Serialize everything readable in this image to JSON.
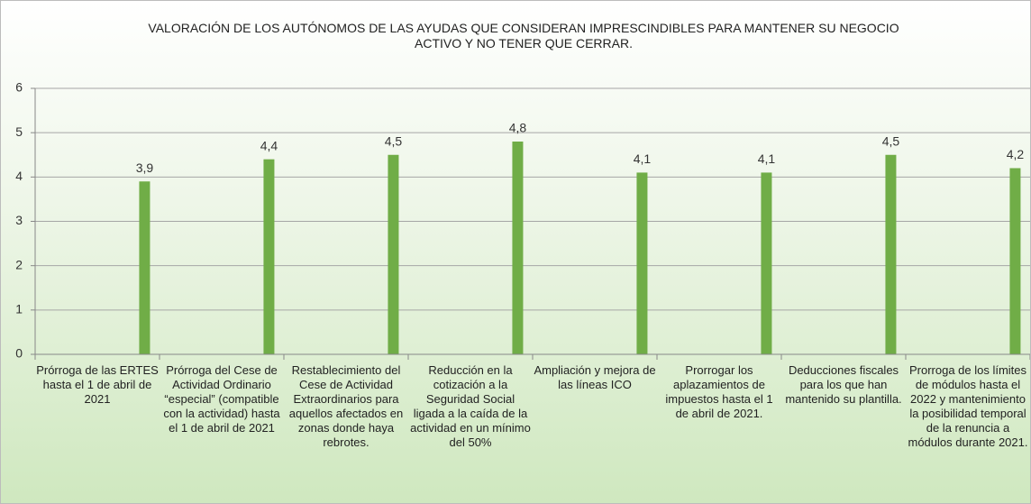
{
  "chart_data": {
    "type": "bar",
    "title": "VALORACIÓN DE LOS AUTÓNOMOS DE LAS AYUDAS QUE CONSIDERAN IMPRESCINDIBLES PARA MANTENER SU NEGOCIO ACTIVO Y NO TENER QUE CERRAR.",
    "categories": [
      "Prórroga de las ERTES hasta el 1 de abril de 2021",
      "Prórroga del Cese de Actividad Ordinario “especial” (compatible con la actividad) hasta el 1 de abril de 2021",
      "Restablecimiento del Cese de Actividad Extraordinarios para aquellos afectados en zonas donde haya rebrotes.",
      "Reducción en la cotización a la Seguridad Social ligada a la caída de la actividad en un mínimo del 50%",
      "Ampliación y mejora de las líneas ICO",
      "Prorrogar los aplazamientos de impuestos hasta el 1 de abril de 2021.",
      "Deducciones fiscales para los que han mantenido su plantilla.",
      "Prorroga de los límites de módulos hasta el 2022 y mantenimiento la posibilidad temporal de la renuncia a módulos durante 2021."
    ],
    "values": [
      3.9,
      4.4,
      4.5,
      4.8,
      4.1,
      4.1,
      4.5,
      4.2
    ],
    "value_labels": [
      "3,9",
      "4,4",
      "4,5",
      "4,8",
      "4,1",
      "4,1",
      "4,5",
      "4,2"
    ],
    "color": "#70ad47",
    "ylim": [
      0,
      6
    ],
    "yticks": [
      0,
      1,
      2,
      3,
      4,
      5,
      6
    ],
    "grid": true
  }
}
